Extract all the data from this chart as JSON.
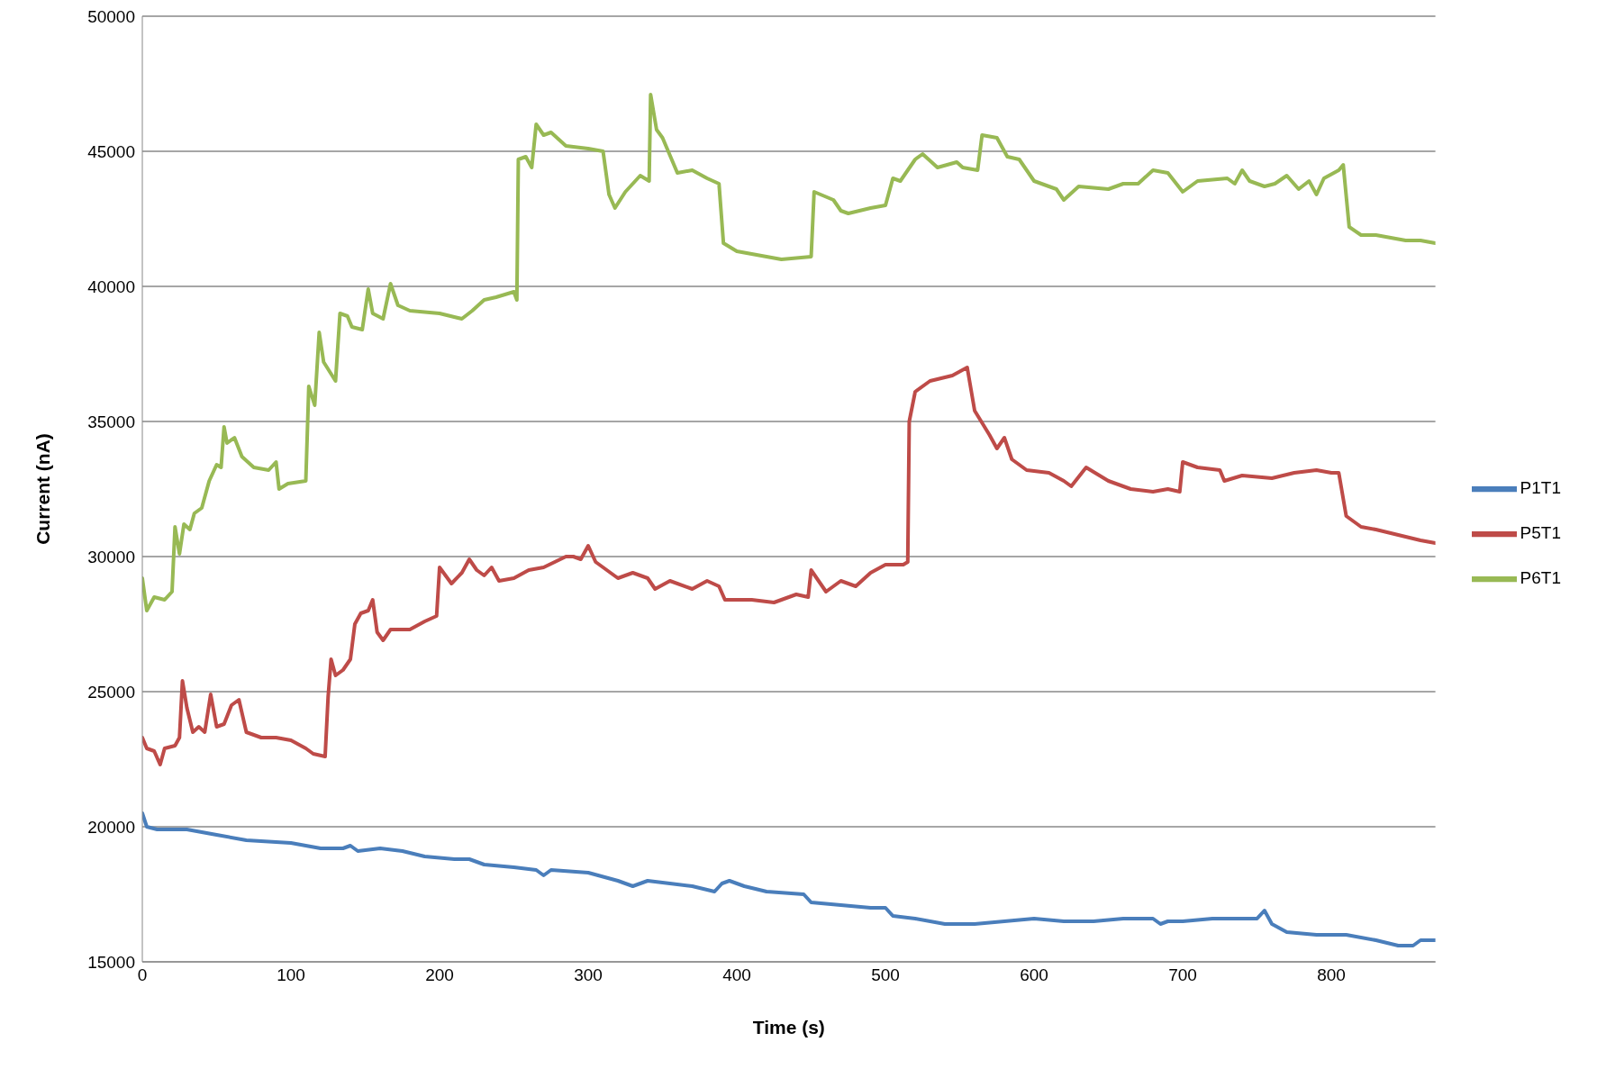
{
  "chart_data": {
    "type": "line",
    "xlabel": "Time (s)",
    "ylabel": "Current (nA)",
    "xlim": [
      0,
      870
    ],
    "xticks": [
      0,
      100,
      200,
      300,
      400,
      500,
      600,
      700,
      800
    ],
    "ylim": [
      15000,
      50000
    ],
    "yticks": [
      15000,
      20000,
      25000,
      30000,
      35000,
      40000,
      45000,
      50000
    ],
    "grid": "y",
    "legend": "right",
    "marker": "none",
    "line_style": "solid",
    "series": [
      {
        "name": "P1T1",
        "color": "#4a7ebb",
        "x": [
          0,
          3,
          10,
          30,
          50,
          70,
          100,
          120,
          135,
          140,
          145,
          160,
          175,
          190,
          210,
          220,
          230,
          250,
          265,
          270,
          275,
          300,
          320,
          330,
          340,
          355,
          370,
          385,
          390,
          395,
          405,
          420,
          445,
          450,
          470,
          490,
          500,
          505,
          520,
          540,
          560,
          580,
          600,
          620,
          640,
          660,
          670,
          680,
          685,
          690,
          700,
          720,
          750,
          755,
          760,
          770,
          790,
          810,
          830,
          845,
          855,
          860,
          870
        ],
        "values": [
          20500,
          20000,
          19900,
          19900,
          19700,
          19500,
          19400,
          19200,
          19200,
          19300,
          19100,
          19200,
          19100,
          18900,
          18800,
          18800,
          18600,
          18500,
          18400,
          18200,
          18400,
          18300,
          18000,
          17800,
          18000,
          17900,
          17800,
          17600,
          17900,
          18000,
          17800,
          17600,
          17500,
          17200,
          17100,
          17000,
          17000,
          16700,
          16600,
          16400,
          16400,
          16500,
          16600,
          16500,
          16500,
          16600,
          16600,
          16600,
          16400,
          16500,
          16500,
          16600,
          16600,
          16900,
          16400,
          16100,
          16000,
          16000,
          15800,
          15600,
          15600,
          15800,
          15800
        ]
      },
      {
        "name": "P5T1",
        "color": "#be4b48",
        "x": [
          0,
          3,
          8,
          12,
          15,
          22,
          25,
          27,
          30,
          34,
          38,
          42,
          46,
          50,
          55,
          60,
          65,
          70,
          80,
          90,
          100,
          110,
          115,
          123,
          125,
          127,
          130,
          135,
          140,
          143,
          147,
          152,
          155,
          158,
          162,
          167,
          180,
          190,
          198,
          200,
          208,
          215,
          220,
          225,
          230,
          235,
          240,
          250,
          260,
          270,
          285,
          290,
          295,
          300,
          305,
          315,
          320,
          330,
          340,
          345,
          355,
          370,
          380,
          388,
          392,
          410,
          425,
          440,
          448,
          450,
          460,
          470,
          480,
          490,
          500,
          512,
          515,
          516,
          520,
          530,
          545,
          555,
          560,
          570,
          575,
          580,
          585,
          595,
          610,
          620,
          625,
          635,
          650,
          665,
          680,
          690,
          698,
          700,
          710,
          725,
          728,
          740,
          760,
          775,
          790,
          800,
          805,
          810,
          820,
          830,
          845,
          860,
          870
        ],
        "values": [
          23300,
          22900,
          22800,
          22300,
          22900,
          23000,
          23300,
          25400,
          24400,
          23500,
          23700,
          23500,
          24900,
          23700,
          23800,
          24500,
          24700,
          23500,
          23300,
          23300,
          23200,
          22900,
          22700,
          22600,
          24800,
          26200,
          25600,
          25800,
          26200,
          27500,
          27900,
          28000,
          28400,
          27200,
          26900,
          27300,
          27300,
          27600,
          27800,
          29600,
          29000,
          29400,
          29900,
          29500,
          29300,
          29600,
          29100,
          29200,
          29500,
          29600,
          30000,
          30000,
          29900,
          30400,
          29800,
          29400,
          29200,
          29400,
          29200,
          28800,
          29100,
          28800,
          29100,
          28900,
          28400,
          28400,
          28300,
          28600,
          28500,
          29500,
          28700,
          29100,
          28900,
          29400,
          29700,
          29700,
          29800,
          35000,
          36100,
          36500,
          36700,
          37000,
          35400,
          34500,
          34000,
          34400,
          33600,
          33200,
          33100,
          32800,
          32600,
          33300,
          32800,
          32500,
          32400,
          32500,
          32400,
          33500,
          33300,
          33200,
          32800,
          33000,
          32900,
          33100,
          33200,
          33100,
          33100,
          31500,
          31100,
          31000,
          30800,
          30600,
          30500
        ]
      },
      {
        "name": "P6T1",
        "color": "#98b954",
        "x": [
          0,
          3,
          8,
          15,
          20,
          22,
          25,
          28,
          32,
          35,
          40,
          45,
          50,
          53,
          55,
          57,
          62,
          67,
          75,
          85,
          90,
          92,
          98,
          110,
          112,
          116,
          119,
          122,
          130,
          133,
          138,
          141,
          148,
          152,
          155,
          162,
          167,
          172,
          180,
          200,
          215,
          222,
          230,
          238,
          250,
          252,
          253,
          258,
          262,
          265,
          270,
          275,
          285,
          300,
          310,
          314,
          318,
          325,
          335,
          341,
          342,
          346,
          350,
          360,
          370,
          380,
          388,
          391,
          400,
          420,
          430,
          450,
          452,
          465,
          470,
          475,
          490,
          500,
          505,
          510,
          515,
          520,
          525,
          535,
          548,
          552,
          562,
          565,
          575,
          582,
          590,
          600,
          615,
          620,
          630,
          650,
          660,
          670,
          680,
          690,
          700,
          710,
          730,
          735,
          740,
          745,
          755,
          762,
          770,
          778,
          785,
          790,
          795,
          805,
          808,
          812,
          820,
          830,
          840,
          850,
          860,
          870
        ],
        "values": [
          29200,
          28000,
          28500,
          28400,
          28700,
          31100,
          30100,
          31200,
          31000,
          31600,
          31800,
          32800,
          33400,
          33300,
          34800,
          34200,
          34400,
          33700,
          33300,
          33200,
          33500,
          32500,
          32700,
          32800,
          36300,
          35600,
          38300,
          37200,
          36500,
          39000,
          38900,
          38500,
          38400,
          39900,
          39000,
          38800,
          40100,
          39300,
          39100,
          39000,
          38800,
          39100,
          39500,
          39600,
          39800,
          39500,
          44700,
          44800,
          44400,
          46000,
          45600,
          45700,
          45200,
          45100,
          45000,
          43400,
          42900,
          43500,
          44100,
          43900,
          47100,
          45800,
          45500,
          44200,
          44300,
          44000,
          43800,
          41600,
          41300,
          41100,
          41000,
          41100,
          43500,
          43200,
          42800,
          42700,
          42900,
          43000,
          44000,
          43900,
          44300,
          44700,
          44900,
          44400,
          44600,
          44400,
          44300,
          45600,
          45500,
          44800,
          44700,
          43900,
          43600,
          43200,
          43700,
          43600,
          43800,
          43800,
          44300,
          44200,
          43500,
          43900,
          44000,
          43800,
          44300,
          43900,
          43700,
          43800,
          44100,
          43600,
          43900,
          43400,
          44000,
          44300,
          44500,
          42200,
          41900,
          41900,
          41800,
          41700,
          41700,
          41600
        ]
      }
    ]
  }
}
